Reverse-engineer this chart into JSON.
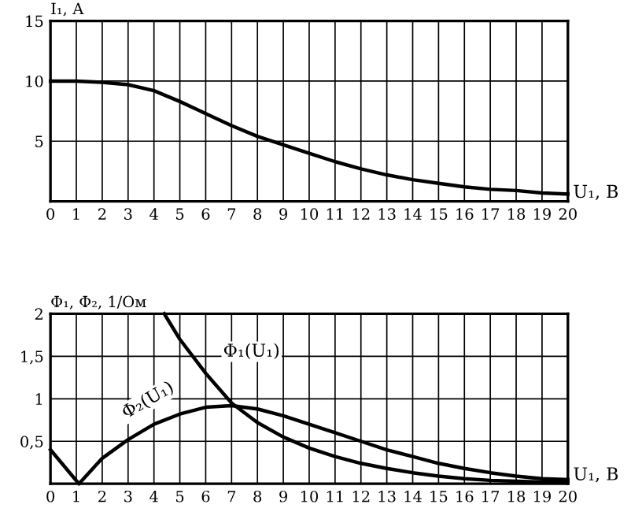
{
  "chart_data": [
    {
      "type": "line",
      "ylabel": "I₁, А",
      "xlabel": "U₁, В",
      "grid": true,
      "legend": false,
      "xlim": [
        0,
        20
      ],
      "xticks": [
        0,
        1,
        2,
        3,
        4,
        5,
        6,
        7,
        8,
        9,
        10,
        11,
        12,
        13,
        14,
        15,
        16,
        17,
        18,
        19,
        20
      ],
      "ylim": [
        0,
        15
      ],
      "yticks": [
        5,
        10,
        15
      ],
      "series": [
        {
          "color": "#000000",
          "x": [
            0,
            1,
            2,
            3,
            4,
            5,
            6,
            7,
            8,
            9,
            10,
            11,
            12,
            13,
            14,
            15,
            16,
            17,
            18,
            19,
            20
          ],
          "values": [
            10,
            10,
            9.9,
            9.7,
            9.2,
            8.3,
            7.3,
            6.3,
            5.4,
            4.7,
            4.0,
            3.3,
            2.7,
            2.2,
            1.8,
            1.5,
            1.2,
            1.0,
            0.9,
            0.7,
            0.6
          ]
        }
      ]
    },
    {
      "type": "line",
      "ylabel": "Φ₁, Φ₂, 1/Ом",
      "xlabel": "U₁, В",
      "grid": true,
      "legend": false,
      "xlim": [
        0,
        20
      ],
      "xticks": [
        0,
        1,
        2,
        3,
        4,
        5,
        6,
        7,
        8,
        9,
        10,
        11,
        12,
        13,
        14,
        15,
        16,
        17,
        18,
        19,
        20
      ],
      "ylim": [
        0,
        2
      ],
      "yticks": [
        {
          "value": 0.5,
          "label": "0,5"
        },
        1,
        {
          "value": 1.5,
          "label": "1,5"
        },
        2
      ],
      "series": [
        {
          "name": "Φ₁(U₁)",
          "color": "#000000",
          "x": [
            4.4,
            5,
            6,
            7,
            8,
            9,
            10,
            11,
            12,
            13,
            14,
            15,
            16,
            17,
            18,
            19,
            20
          ],
          "values": [
            2,
            1.7,
            1.3,
            0.95,
            0.72,
            0.55,
            0.42,
            0.32,
            0.24,
            0.18,
            0.13,
            0.09,
            0.06,
            0.04,
            0.03,
            0.02,
            0.02
          ]
        },
        {
          "name": "Φ₂(U₁)",
          "color": "#000000",
          "x": [
            0,
            1.1,
            2,
            3,
            4,
            5,
            6,
            7,
            8,
            9,
            10,
            11,
            12,
            13,
            14,
            15,
            16,
            17,
            18,
            19,
            20
          ],
          "values": [
            0.4,
            0,
            0.3,
            0.52,
            0.7,
            0.82,
            0.9,
            0.92,
            0.88,
            0.8,
            0.7,
            0.6,
            0.5,
            0.4,
            0.32,
            0.24,
            0.18,
            0.13,
            0.09,
            0.06,
            0.05
          ]
        }
      ]
    }
  ]
}
